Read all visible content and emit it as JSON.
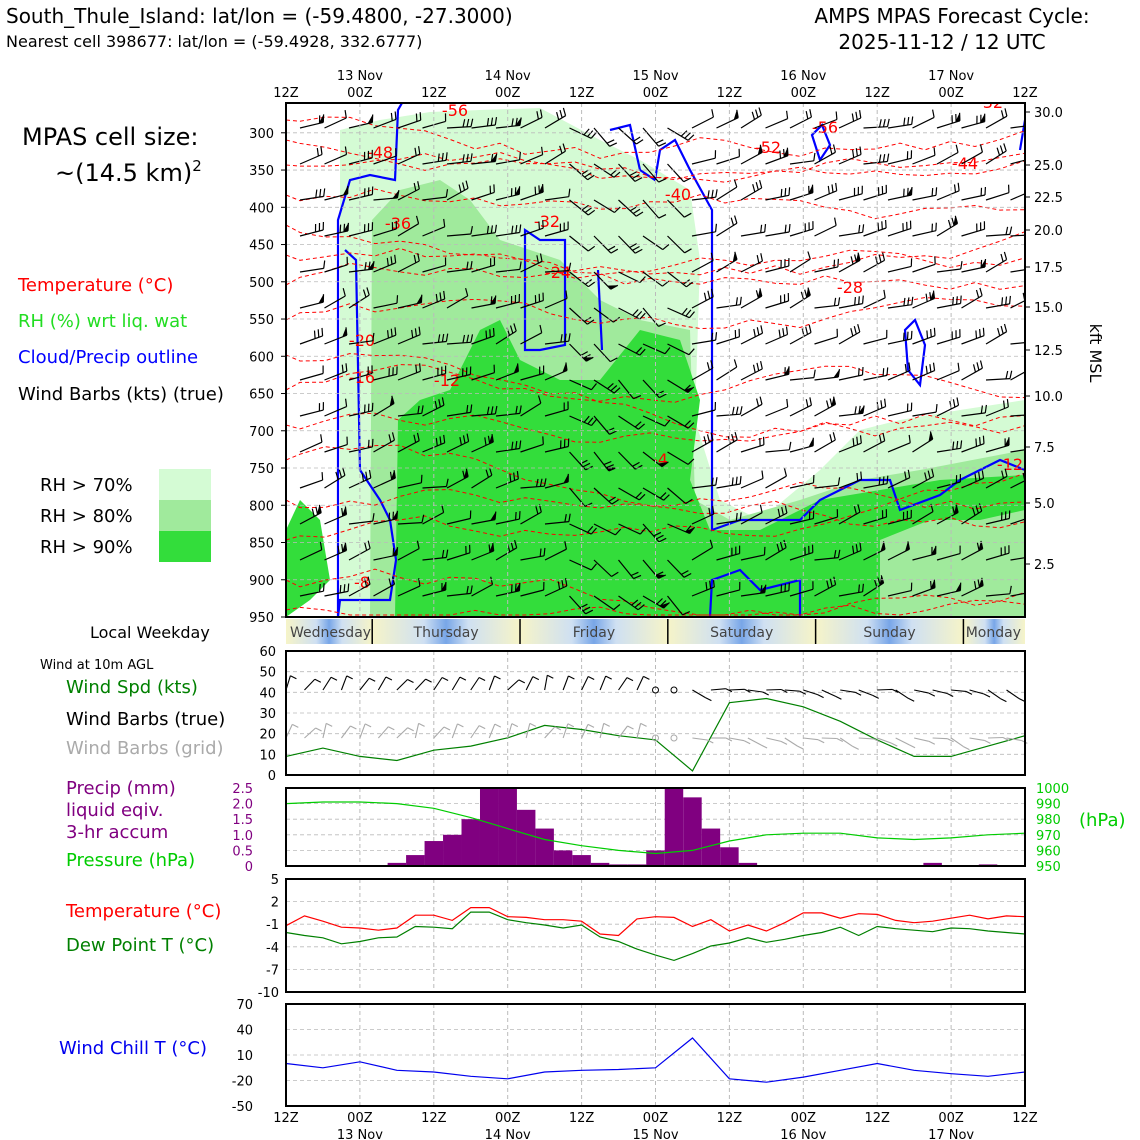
{
  "header": {
    "site_line": "South_Thule_Island: lat/lon = (-59.4800, -27.3000)",
    "cell_line": "Nearest cell 398677: lat/lon = (-59.4928, 332.6777)",
    "cycle_line1": "AMPS MPAS Forecast Cycle:",
    "cycle_line2": "2025-11-12 / 12 UTC"
  },
  "cell_size": {
    "line1": "MPAS cell size:",
    "line2": "~(14.5 km)",
    "exponent": "2"
  },
  "legend_main": {
    "temperature": "Temperature (°C)",
    "rh": "RH (%) wrt liq. wat",
    "cloud": "Cloud/Precip outline",
    "barbs": "Wind Barbs (kts) (true)"
  },
  "rh_legend": [
    {
      "label": "RH > 70%",
      "color": "#d4fbd4"
    },
    {
      "label": "RH > 80%",
      "color": "#a0ea9c"
    },
    {
      "label": "RH > 90%",
      "color": "#33dd3b"
    }
  ],
  "colors": {
    "temp": "#ff0000",
    "rh": "#22dd22",
    "cloud": "#0000ff",
    "precip": "#800080",
    "pressure": "#00cc00",
    "dewpoint": "#008000",
    "windchill": "#0000ee",
    "windspd": "#008000",
    "gridbarb": "#aaaaaa"
  },
  "time_axis": {
    "hour_labels": [
      "12Z",
      "00Z",
      "12Z",
      "00Z",
      "12Z",
      "00Z",
      "12Z",
      "00Z",
      "12Z",
      "00Z",
      "12Z"
    ],
    "day_labels": [
      "13 Nov",
      "14 Nov",
      "15 Nov",
      "16 Nov",
      "17 Nov"
    ]
  },
  "weekday": {
    "title": "Local Weekday",
    "days": [
      "Wednesday",
      "Thursday",
      "Friday",
      "Saturday",
      "Sunday",
      "Monday"
    ]
  },
  "chart_data": [
    {
      "type": "heatmap",
      "name": "cross-section",
      "yaxis_left_ticks": [
        300,
        350,
        400,
        450,
        500,
        550,
        600,
        650,
        700,
        750,
        800,
        850,
        900,
        950
      ],
      "yaxis_right_ticks": [
        "30.0",
        "25.0",
        "22.5",
        "20.0",
        "17.5",
        "15.0",
        "12.5",
        "10.0",
        "7.5",
        "5.0",
        "2.5"
      ],
      "yaxis_right_label": "kft MSL",
      "ylim": [
        260,
        950
      ],
      "temperature_contour_labels": [
        "-56",
        "-48",
        "-36",
        "-32",
        "-24",
        "-20",
        "-16",
        "-12",
        "-8",
        "-4",
        "-40",
        "-52",
        "-56",
        "-44",
        "-28",
        "-12",
        "-32"
      ]
    },
    {
      "type": "line",
      "name": "wind",
      "panel_title": "Wind at 10m AGL",
      "labels": [
        "Wind Spd (kts)",
        "Wind Barbs (true)",
        "Wind Barbs (grid)"
      ],
      "ylim": [
        0,
        60
      ],
      "yticks": [
        0,
        10,
        20,
        30,
        40,
        50,
        60
      ],
      "x_hours": [
        0,
        6,
        12,
        18,
        24,
        30,
        36,
        42,
        48,
        54,
        60,
        66,
        72,
        78,
        84,
        90,
        96,
        102,
        108,
        114,
        120
      ],
      "wind_speed": [
        9,
        13,
        9,
        7,
        12,
        14,
        18,
        24,
        22,
        19,
        17,
        2,
        35,
        37,
        33,
        26,
        17,
        9,
        9,
        14,
        19
      ]
    },
    {
      "type": "bar",
      "name": "precip-pressure",
      "labels": [
        "Precip (mm)",
        "liquid eqiv.",
        "3-hr accum",
        "Pressure (hPa)"
      ],
      "left_ticks": [
        "0",
        "0.5",
        "1.0",
        "1.5",
        "2.0",
        "2.5"
      ],
      "right_ticks": [
        "950",
        "960",
        "970",
        "980",
        "990",
        "1000"
      ],
      "right_label": "(hPa)",
      "precip_ylim": [
        0,
        2.5
      ],
      "pressure_ylim": [
        950,
        1000
      ],
      "precip_hours": [
        18,
        21,
        24,
        27,
        30,
        33,
        36,
        39,
        42,
        45,
        48,
        51,
        54,
        57,
        60,
        63,
        66,
        69,
        72,
        75,
        78,
        81,
        84,
        87,
        90,
        93,
        96,
        99,
        102,
        105,
        108,
        111,
        114,
        117
      ],
      "precip_mm": [
        0.1,
        0.35,
        0.8,
        1.0,
        1.5,
        2.5,
        2.5,
        1.8,
        1.2,
        0.5,
        0.35,
        0.1,
        0.05,
        0.05,
        0.5,
        2.5,
        2.2,
        1.2,
        0.6,
        0.1,
        0,
        0,
        0,
        0,
        0,
        0,
        0,
        0,
        0,
        0.1,
        0,
        0,
        0.05,
        0
      ],
      "pressure_x": [
        0,
        6,
        12,
        18,
        24,
        30,
        36,
        42,
        48,
        54,
        60,
        66,
        72,
        78,
        84,
        90,
        96,
        102,
        108,
        114,
        120
      ],
      "pressure_hpa": [
        990,
        991,
        991,
        990,
        987,
        981,
        974,
        967,
        963,
        960,
        958,
        960,
        966,
        970,
        971,
        971,
        968,
        967,
        968,
        970,
        971
      ]
    },
    {
      "type": "line",
      "name": "temperature",
      "labels": [
        "Temperature (°C)",
        "Dew Point T (°C)"
      ],
      "ylim": [
        -10,
        5
      ],
      "yticks": [
        5,
        2,
        -1,
        -4,
        -7,
        -10
      ],
      "x_hours": [
        0,
        3,
        6,
        9,
        12,
        15,
        18,
        21,
        24,
        27,
        30,
        33,
        36,
        39,
        42,
        45,
        48,
        51,
        54,
        57,
        60,
        63,
        66,
        69,
        72,
        75,
        78,
        81,
        84,
        87,
        90,
        93,
        96,
        99,
        102,
        105,
        108,
        111,
        114,
        117,
        120
      ],
      "temperature": [
        -1.2,
        0.1,
        -0.6,
        -1.4,
        -1.5,
        -1.8,
        -1.5,
        0.2,
        0.2,
        -0.5,
        1.2,
        1.2,
        0,
        -0.1,
        -0.4,
        -0.4,
        -0.6,
        -2.3,
        -2.5,
        -0.3,
        0,
        -0.1,
        -1.3,
        -0.4,
        -1.9,
        -1.1,
        -1.9,
        -0.8,
        0.5,
        0.5,
        -0.2,
        0.4,
        0.3,
        -0.5,
        -0.8,
        -0.6,
        -0.2,
        0.2,
        -0.3,
        0.1,
        0
      ],
      "dewpoint": [
        -2.1,
        -2.5,
        -2.8,
        -3.6,
        -3.3,
        -2.8,
        -2.7,
        -1.3,
        -1.4,
        -1.6,
        0.6,
        0.6,
        -0.4,
        -0.8,
        -1.1,
        -1.5,
        -1.1,
        -2.7,
        -3.3,
        -4.3,
        -5.1,
        -5.8,
        -4.9,
        -3.9,
        -3.5,
        -2.8,
        -3.4,
        -3,
        -2.5,
        -2.1,
        -1.4,
        -2.5,
        -1.3,
        -1.6,
        -1.8,
        -2,
        -1.5,
        -1.6,
        -1.9,
        -2.1,
        -2.3
      ]
    },
    {
      "type": "line",
      "name": "windchill",
      "labels": [
        "Wind Chill T (°C)"
      ],
      "ylim": [
        -50,
        70
      ],
      "yticks": [
        70,
        40,
        10,
        -20,
        -50
      ],
      "x_hours": [
        0,
        6,
        12,
        18,
        24,
        30,
        36,
        42,
        48,
        54,
        60,
        66,
        72,
        78,
        84,
        90,
        96,
        102,
        108,
        114,
        120
      ],
      "windchill": [
        0,
        -5,
        2,
        -8,
        -10,
        -15,
        -18,
        -10,
        -8,
        -7,
        -5,
        30,
        -18,
        -22,
        -16,
        -8,
        0,
        -8,
        -12,
        -15,
        -10
      ]
    }
  ]
}
